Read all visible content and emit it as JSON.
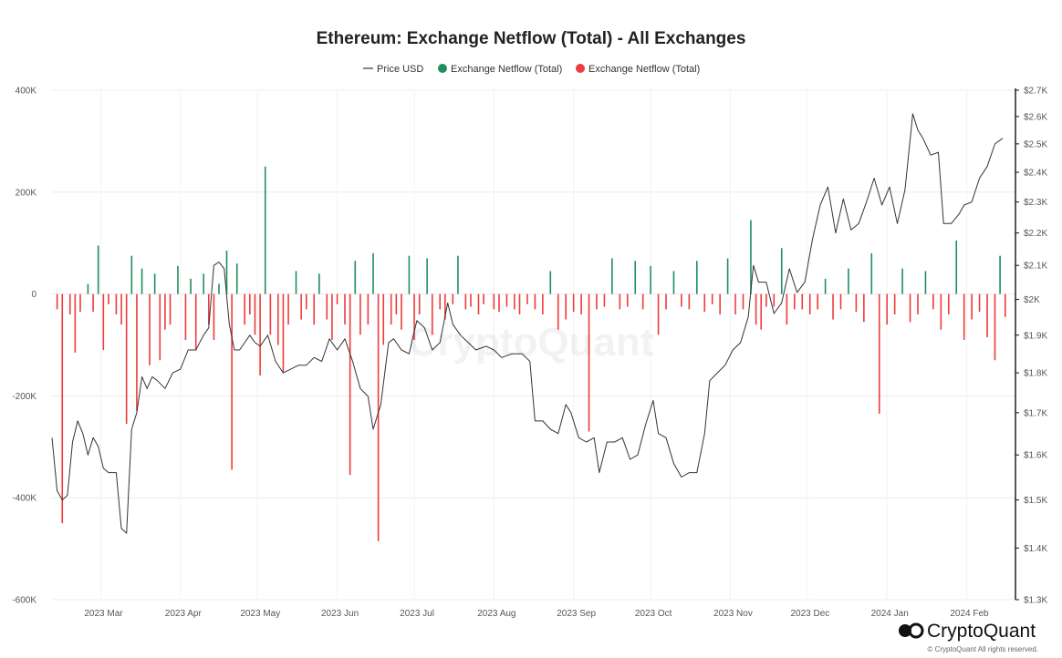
{
  "chart_data": {
    "type": "bar",
    "title": "Ethereum: Exchange Netflow (Total) - All Exchanges",
    "legend": [
      {
        "label": "Price USD",
        "kind": "line",
        "color": "#333333"
      },
      {
        "label": "Exchange Netflow (Total)",
        "kind": "dot",
        "color": "#1e8f5e"
      },
      {
        "label": "Exchange Netflow (Total)",
        "kind": "dot",
        "color": "#ee3b3b"
      }
    ],
    "legend_position": "top-center",
    "x_labels": [
      "2023 Mar",
      "2023 Apr",
      "2023 May",
      "2023 Jun",
      "2023 Jul",
      "2023 Aug",
      "2023 Sep",
      "2023 Oct",
      "2023 Nov",
      "2023 Dec",
      "2024 Jan",
      "2024 Feb"
    ],
    "x_range": [
      "2023-02-10",
      "2024-02-20"
    ],
    "y_left": {
      "min": -600000,
      "max": 400000,
      "ticks": [
        400000,
        200000,
        0,
        -200000,
        -400000,
        -600000
      ],
      "tick_labels": [
        "400K",
        "200K",
        "0",
        "-200K",
        "-400K",
        "-600K"
      ]
    },
    "y_right": {
      "min": 1300,
      "max": 2700,
      "ticks": [
        2700,
        2600,
        2500,
        2400,
        2300,
        2200,
        2100,
        2000,
        1900,
        1800,
        1700,
        1600,
        1500,
        1400,
        1300
      ],
      "tick_labels": [
        "$2.7K",
        "$2.6K",
        "$2.5K",
        "$2.4K",
        "$2.3K",
        "$2.2K",
        "$2.1K",
        "$2K",
        "$1.9K",
        "$1.8K",
        "$1.7K",
        "$1.6K",
        "$1.5K",
        "$1.4K",
        "$1.3K"
      ],
      "scale": "log"
    },
    "grid": true,
    "positive_color": "#1e8f5e",
    "negative_color": "#ee3b3b",
    "price_color": "#333333",
    "netflow_series": {
      "name": "Exchange Netflow (Total)",
      "points": [
        [
          "2023-02-12",
          -30000
        ],
        [
          "2023-02-14",
          -450000
        ],
        [
          "2023-02-17",
          -40000
        ],
        [
          "2023-02-19",
          -115000
        ],
        [
          "2023-02-21",
          -35000
        ],
        [
          "2023-02-24",
          20000
        ],
        [
          "2023-02-26",
          -35000
        ],
        [
          "2023-02-28",
          95000
        ],
        [
          "2023-03-02",
          -110000
        ],
        [
          "2023-03-04",
          -20000
        ],
        [
          "2023-03-07",
          -40000
        ],
        [
          "2023-03-09",
          -60000
        ],
        [
          "2023-03-11",
          -255000
        ],
        [
          "2023-03-13",
          75000
        ],
        [
          "2023-03-15",
          -230000
        ],
        [
          "2023-03-17",
          50000
        ],
        [
          "2023-03-20",
          -140000
        ],
        [
          "2023-03-22",
          40000
        ],
        [
          "2023-03-24",
          -130000
        ],
        [
          "2023-03-26",
          -70000
        ],
        [
          "2023-03-28",
          -60000
        ],
        [
          "2023-03-31",
          55000
        ],
        [
          "2023-04-03",
          -90000
        ],
        [
          "2023-04-05",
          30000
        ],
        [
          "2023-04-07",
          -110000
        ],
        [
          "2023-04-10",
          40000
        ],
        [
          "2023-04-12",
          -60000
        ],
        [
          "2023-04-14",
          -90000
        ],
        [
          "2023-04-16",
          20000
        ],
        [
          "2023-04-19",
          85000
        ],
        [
          "2023-04-21",
          -345000
        ],
        [
          "2023-04-23",
          60000
        ],
        [
          "2023-04-26",
          -60000
        ],
        [
          "2023-04-28",
          -40000
        ],
        [
          "2023-04-30",
          -80000
        ],
        [
          "2023-05-02",
          -160000
        ],
        [
          "2023-05-04",
          250000
        ],
        [
          "2023-05-06",
          -80000
        ],
        [
          "2023-05-09",
          -100000
        ],
        [
          "2023-05-11",
          -155000
        ],
        [
          "2023-05-13",
          -60000
        ],
        [
          "2023-05-16",
          45000
        ],
        [
          "2023-05-18",
          -50000
        ],
        [
          "2023-05-20",
          -30000
        ],
        [
          "2023-05-23",
          -60000
        ],
        [
          "2023-05-25",
          40000
        ],
        [
          "2023-05-28",
          -50000
        ],
        [
          "2023-05-30",
          -90000
        ],
        [
          "2023-06-01",
          -20000
        ],
        [
          "2023-06-04",
          -60000
        ],
        [
          "2023-06-06",
          -355000
        ],
        [
          "2023-06-08",
          65000
        ],
        [
          "2023-06-10",
          -80000
        ],
        [
          "2023-06-13",
          -60000
        ],
        [
          "2023-06-15",
          80000
        ],
        [
          "2023-06-17",
          -485000
        ],
        [
          "2023-06-19",
          -100000
        ],
        [
          "2023-06-22",
          -60000
        ],
        [
          "2023-06-24",
          -40000
        ],
        [
          "2023-06-26",
          -70000
        ],
        [
          "2023-06-29",
          75000
        ],
        [
          "2023-07-01",
          -90000
        ],
        [
          "2023-07-03",
          -40000
        ],
        [
          "2023-07-06",
          70000
        ],
        [
          "2023-07-08",
          -80000
        ],
        [
          "2023-07-11",
          -30000
        ],
        [
          "2023-07-13",
          -50000
        ],
        [
          "2023-07-16",
          -20000
        ],
        [
          "2023-07-18",
          75000
        ],
        [
          "2023-07-21",
          -30000
        ],
        [
          "2023-07-23",
          -25000
        ],
        [
          "2023-07-26",
          -40000
        ],
        [
          "2023-07-28",
          -20000
        ],
        [
          "2023-08-01",
          -30000
        ],
        [
          "2023-08-03",
          -35000
        ],
        [
          "2023-08-06",
          -25000
        ],
        [
          "2023-08-09",
          -30000
        ],
        [
          "2023-08-11",
          -40000
        ],
        [
          "2023-08-14",
          -20000
        ],
        [
          "2023-08-17",
          -30000
        ],
        [
          "2023-08-20",
          -40000
        ],
        [
          "2023-08-23",
          45000
        ],
        [
          "2023-08-26",
          -70000
        ],
        [
          "2023-08-29",
          -50000
        ],
        [
          "2023-09-01",
          -35000
        ],
        [
          "2023-09-04",
          -40000
        ],
        [
          "2023-09-07",
          -270000
        ],
        [
          "2023-09-10",
          -30000
        ],
        [
          "2023-09-13",
          -25000
        ],
        [
          "2023-09-16",
          70000
        ],
        [
          "2023-09-19",
          -30000
        ],
        [
          "2023-09-22",
          -25000
        ],
        [
          "2023-09-25",
          65000
        ],
        [
          "2023-09-28",
          -30000
        ],
        [
          "2023-10-01",
          55000
        ],
        [
          "2023-10-04",
          -80000
        ],
        [
          "2023-10-07",
          -30000
        ],
        [
          "2023-10-10",
          45000
        ],
        [
          "2023-10-13",
          -25000
        ],
        [
          "2023-10-16",
          -30000
        ],
        [
          "2023-10-19",
          65000
        ],
        [
          "2023-10-22",
          -35000
        ],
        [
          "2023-10-25",
          -20000
        ],
        [
          "2023-10-28",
          -40000
        ],
        [
          "2023-10-31",
          70000
        ],
        [
          "2023-11-03",
          -40000
        ],
        [
          "2023-11-06",
          -30000
        ],
        [
          "2023-11-09",
          145000
        ],
        [
          "2023-11-11",
          -60000
        ],
        [
          "2023-11-13",
          -70000
        ],
        [
          "2023-11-15",
          -25000
        ],
        [
          "2023-11-18",
          -25000
        ],
        [
          "2023-11-21",
          90000
        ],
        [
          "2023-11-23",
          -60000
        ],
        [
          "2023-11-26",
          -30000
        ],
        [
          "2023-11-29",
          -30000
        ],
        [
          "2023-12-02",
          -40000
        ],
        [
          "2023-12-05",
          -30000
        ],
        [
          "2023-12-08",
          30000
        ],
        [
          "2023-12-11",
          -50000
        ],
        [
          "2023-12-14",
          -30000
        ],
        [
          "2023-12-17",
          50000
        ],
        [
          "2023-12-20",
          -35000
        ],
        [
          "2023-12-23",
          -55000
        ],
        [
          "2023-12-26",
          80000
        ],
        [
          "2023-12-29",
          -235000
        ],
        [
          "2024-01-01",
          -60000
        ],
        [
          "2024-01-04",
          -40000
        ],
        [
          "2024-01-07",
          50000
        ],
        [
          "2024-01-10",
          -55000
        ],
        [
          "2024-01-13",
          -40000
        ],
        [
          "2024-01-16",
          45000
        ],
        [
          "2024-01-19",
          -30000
        ],
        [
          "2024-01-22",
          -70000
        ],
        [
          "2024-01-25",
          -40000
        ],
        [
          "2024-01-28",
          105000
        ],
        [
          "2024-01-31",
          -90000
        ],
        [
          "2024-02-03",
          -50000
        ],
        [
          "2024-02-06",
          -35000
        ],
        [
          "2024-02-09",
          -85000
        ],
        [
          "2024-02-12",
          -130000
        ],
        [
          "2024-02-14",
          75000
        ],
        [
          "2024-02-16",
          -45000
        ]
      ]
    },
    "price_series": {
      "name": "Price USD",
      "points": [
        [
          "2023-02-10",
          1640
        ],
        [
          "2023-02-12",
          1520
        ],
        [
          "2023-02-14",
          1500
        ],
        [
          "2023-02-16",
          1510
        ],
        [
          "2023-02-18",
          1630
        ],
        [
          "2023-02-20",
          1680
        ],
        [
          "2023-02-22",
          1650
        ],
        [
          "2023-02-24",
          1600
        ],
        [
          "2023-02-26",
          1640
        ],
        [
          "2023-02-28",
          1620
        ],
        [
          "2023-03-02",
          1570
        ],
        [
          "2023-03-04",
          1560
        ],
        [
          "2023-03-07",
          1560
        ],
        [
          "2023-03-09",
          1440
        ],
        [
          "2023-03-11",
          1430
        ],
        [
          "2023-03-13",
          1660
        ],
        [
          "2023-03-15",
          1700
        ],
        [
          "2023-03-17",
          1790
        ],
        [
          "2023-03-19",
          1760
        ],
        [
          "2023-03-21",
          1790
        ],
        [
          "2023-03-23",
          1780
        ],
        [
          "2023-03-26",
          1760
        ],
        [
          "2023-03-29",
          1800
        ],
        [
          "2023-04-01",
          1810
        ],
        [
          "2023-04-04",
          1860
        ],
        [
          "2023-04-07",
          1860
        ],
        [
          "2023-04-10",
          1900
        ],
        [
          "2023-04-12",
          1920
        ],
        [
          "2023-04-14",
          2100
        ],
        [
          "2023-04-16",
          2110
        ],
        [
          "2023-04-18",
          2090
        ],
        [
          "2023-04-20",
          1930
        ],
        [
          "2023-04-22",
          1860
        ],
        [
          "2023-04-24",
          1860
        ],
        [
          "2023-04-26",
          1880
        ],
        [
          "2023-04-28",
          1900
        ],
        [
          "2023-04-30",
          1880
        ],
        [
          "2023-05-02",
          1870
        ],
        [
          "2023-05-05",
          1900
        ],
        [
          "2023-05-08",
          1830
        ],
        [
          "2023-05-11",
          1800
        ],
        [
          "2023-05-14",
          1810
        ],
        [
          "2023-05-17",
          1820
        ],
        [
          "2023-05-20",
          1820
        ],
        [
          "2023-05-23",
          1840
        ],
        [
          "2023-05-26",
          1830
        ],
        [
          "2023-05-29",
          1890
        ],
        [
          "2023-06-01",
          1860
        ],
        [
          "2023-06-04",
          1890
        ],
        [
          "2023-06-07",
          1830
        ],
        [
          "2023-06-10",
          1760
        ],
        [
          "2023-06-13",
          1740
        ],
        [
          "2023-06-15",
          1660
        ],
        [
          "2023-06-18",
          1720
        ],
        [
          "2023-06-21",
          1880
        ],
        [
          "2023-06-23",
          1890
        ],
        [
          "2023-06-26",
          1860
        ],
        [
          "2023-06-29",
          1850
        ],
        [
          "2023-07-02",
          1940
        ],
        [
          "2023-07-05",
          1920
        ],
        [
          "2023-07-08",
          1860
        ],
        [
          "2023-07-11",
          1880
        ],
        [
          "2023-07-14",
          1990
        ],
        [
          "2023-07-16",
          1930
        ],
        [
          "2023-07-19",
          1900
        ],
        [
          "2023-07-22",
          1880
        ],
        [
          "2023-07-25",
          1860
        ],
        [
          "2023-07-29",
          1870
        ],
        [
          "2023-08-01",
          1860
        ],
        [
          "2023-08-04",
          1840
        ],
        [
          "2023-08-08",
          1850
        ],
        [
          "2023-08-12",
          1850
        ],
        [
          "2023-08-15",
          1830
        ],
        [
          "2023-08-17",
          1680
        ],
        [
          "2023-08-20",
          1680
        ],
        [
          "2023-08-23",
          1660
        ],
        [
          "2023-08-26",
          1650
        ],
        [
          "2023-08-29",
          1720
        ],
        [
          "2023-08-31",
          1700
        ],
        [
          "2023-09-03",
          1640
        ],
        [
          "2023-09-06",
          1630
        ],
        [
          "2023-09-09",
          1640
        ],
        [
          "2023-09-11",
          1560
        ],
        [
          "2023-09-14",
          1630
        ],
        [
          "2023-09-17",
          1630
        ],
        [
          "2023-09-20",
          1640
        ],
        [
          "2023-09-23",
          1590
        ],
        [
          "2023-09-26",
          1600
        ],
        [
          "2023-09-29",
          1670
        ],
        [
          "2023-10-02",
          1730
        ],
        [
          "2023-10-04",
          1650
        ],
        [
          "2023-10-07",
          1640
        ],
        [
          "2023-10-10",
          1580
        ],
        [
          "2023-10-13",
          1550
        ],
        [
          "2023-10-16",
          1560
        ],
        [
          "2023-10-19",
          1560
        ],
        [
          "2023-10-22",
          1650
        ],
        [
          "2023-10-24",
          1780
        ],
        [
          "2023-10-27",
          1800
        ],
        [
          "2023-10-30",
          1820
        ],
        [
          "2023-11-02",
          1860
        ],
        [
          "2023-11-05",
          1880
        ],
        [
          "2023-11-08",
          1950
        ],
        [
          "2023-11-10",
          2100
        ],
        [
          "2023-11-12",
          2050
        ],
        [
          "2023-11-15",
          2050
        ],
        [
          "2023-11-18",
          1960
        ],
        [
          "2023-11-21",
          1990
        ],
        [
          "2023-11-24",
          2090
        ],
        [
          "2023-11-27",
          2020
        ],
        [
          "2023-11-30",
          2050
        ],
        [
          "2023-12-03",
          2180
        ],
        [
          "2023-12-06",
          2290
        ],
        [
          "2023-12-09",
          2350
        ],
        [
          "2023-12-12",
          2200
        ],
        [
          "2023-12-15",
          2310
        ],
        [
          "2023-12-18",
          2210
        ],
        [
          "2023-12-21",
          2230
        ],
        [
          "2023-12-24",
          2300
        ],
        [
          "2023-12-27",
          2380
        ],
        [
          "2023-12-30",
          2290
        ],
        [
          "2024-01-02",
          2350
        ],
        [
          "2024-01-05",
          2230
        ],
        [
          "2024-01-08",
          2340
        ],
        [
          "2024-01-11",
          2610
        ],
        [
          "2024-01-13",
          2550
        ],
        [
          "2024-01-15",
          2520
        ],
        [
          "2024-01-18",
          2460
        ],
        [
          "2024-01-21",
          2470
        ],
        [
          "2024-01-23",
          2230
        ],
        [
          "2024-01-26",
          2230
        ],
        [
          "2024-01-29",
          2260
        ],
        [
          "2024-01-31",
          2290
        ],
        [
          "2024-02-03",
          2300
        ],
        [
          "2024-02-06",
          2380
        ],
        [
          "2024-02-09",
          2420
        ],
        [
          "2024-02-12",
          2500
        ],
        [
          "2024-02-15",
          2520
        ]
      ]
    }
  },
  "watermark": "CryptoQuant",
  "footer": {
    "brand": "CryptoQuant",
    "copyright": "© CryptoQuant All rights reserved."
  }
}
